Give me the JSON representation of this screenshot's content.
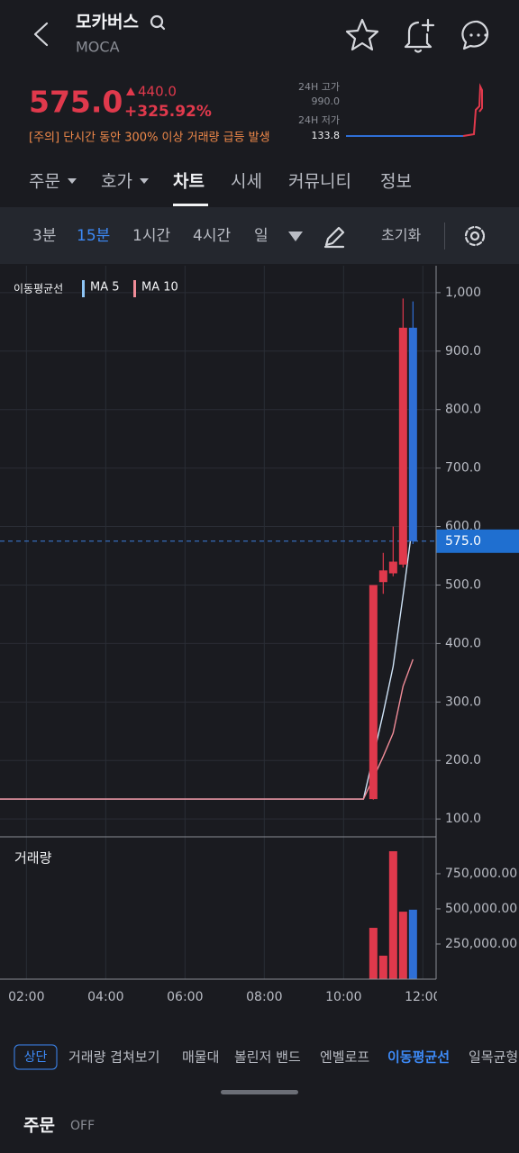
{
  "header": {
    "name": "모카버스",
    "symbol": "MOCA",
    "price": "575.0",
    "change": "440.0",
    "change_pct": "+325.92%",
    "warning": "[주의] 단시간 동안 300% 이상 거래량 급등 발생",
    "high_label": "24H 고가",
    "high": "990.0",
    "low_label": "24H 저가",
    "low": "133.8"
  },
  "tabs": [
    "주문",
    "호가",
    "차트",
    "시세",
    "커뮤니티",
    "정보"
  ],
  "intervals": [
    "3분",
    "15분",
    "1시간",
    "4시간",
    "일"
  ],
  "reset": "초기화",
  "indicators": [
    "상단",
    "거래량 겹쳐보기",
    "매물대",
    "볼린저 밴드",
    "엔벨로프",
    "이동평균선",
    "일목균형표"
  ],
  "footer": {
    "order": "주문",
    "state": "OFF"
  },
  "chart_data": {
    "type": "candlestick",
    "legend_title": "이동평균선",
    "up_color": "#e0394c",
    "down_color": "#2f6fd6",
    "xlim": [
      "01:20",
      "12:20"
    ],
    "xticks": [
      "02:00",
      "04:00",
      "06:00",
      "08:00",
      "10:00",
      "12:00"
    ],
    "ylim": [
      71,
      1046
    ],
    "yticks": [
      {
        "value": 100,
        "label": "100.0"
      },
      {
        "value": 200,
        "label": "200.0"
      },
      {
        "value": 300,
        "label": "300.0"
      },
      {
        "value": 400,
        "label": "400.0"
      },
      {
        "value": 500,
        "label": "500.0"
      },
      {
        "value": 600,
        "label": "600.0"
      },
      {
        "value": 700,
        "label": "700.0"
      },
      {
        "value": 800,
        "label": "800.0"
      },
      {
        "value": 900,
        "label": "900.0"
      },
      {
        "value": 1000,
        "label": "1,000"
      }
    ],
    "grid": true,
    "current_price": {
      "value": 575,
      "label": "575.0"
    },
    "candles": {
      "x": [
        "10:45",
        "11:00",
        "11:15",
        "11:30",
        "11:45"
      ],
      "open": [
        134,
        505,
        520,
        535,
        940
      ],
      "high": [
        500,
        555,
        600,
        990,
        985
      ],
      "low": [
        133,
        485,
        515,
        530,
        570
      ],
      "close": [
        500,
        525,
        540,
        940,
        575
      ]
    },
    "series": [
      {
        "name": "MA 5",
        "color": "#cfe3f7",
        "legend_color": "#8ec5f5",
        "x": [
          "01:20",
          "10:30",
          "10:45",
          "11:00",
          "11:15",
          "11:30",
          "11:45"
        ],
        "values": [
          134,
          134,
          207,
          281,
          361,
          482,
          609
        ]
      },
      {
        "name": "MA 10",
        "color": "#f08c98",
        "legend_color": "#f08c98",
        "x": [
          "01:20",
          "10:30",
          "10:45",
          "11:00",
          "11:15",
          "11:30",
          "11:45"
        ],
        "values": [
          134,
          134,
          170,
          207,
          247,
          327,
          373
        ]
      }
    ],
    "volume": {
      "title": "거래량",
      "values": [
        365000,
        167000,
        910000,
        480000,
        494000
      ],
      "ylim": [
        0,
        1006000
      ],
      "yticks": [
        {
          "value": 250000,
          "label": "250,000.00"
        },
        {
          "value": 500000,
          "label": "500,000.00"
        },
        {
          "value": 750000,
          "label": "750,000.00"
        }
      ]
    }
  }
}
